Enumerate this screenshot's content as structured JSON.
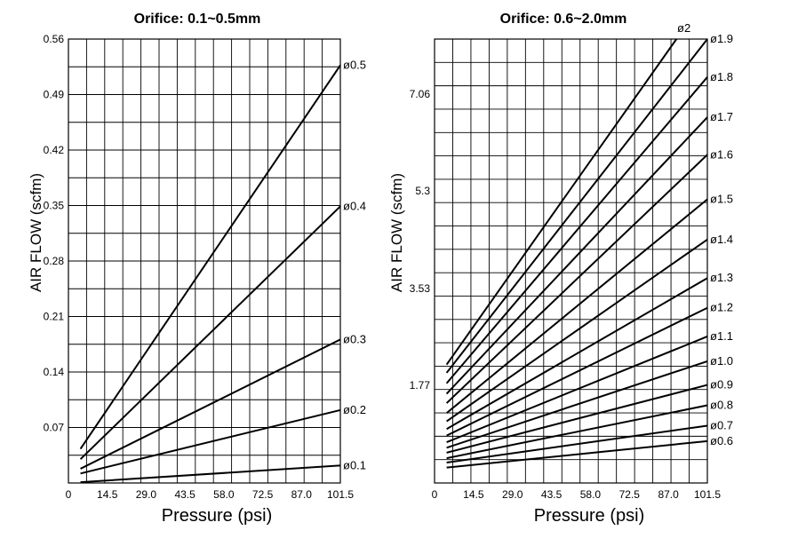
{
  "chart_data": [
    {
      "type": "line",
      "title": "Orifice: 0.1~0.5mm",
      "xlabel": "Pressure (psi)",
      "ylabel": "AIR FLOW (scfm)",
      "xlim": [
        0,
        101.5
      ],
      "ylim": [
        0,
        0.56
      ],
      "x_ticks": [
        "0",
        "14.5",
        "29.0",
        "43.5",
        "58.0",
        "72.5",
        "87.0",
        "101.5"
      ],
      "y_ticks": [
        "0.07",
        "0.14",
        "0.21",
        "0.28",
        "0.35",
        "0.42",
        "0.49",
        "0.56"
      ],
      "grid": true,
      "series": [
        {
          "name": "ø0.1",
          "x": [
            4.5,
            101.5
          ],
          "y": [
            0.001,
            0.022
          ]
        },
        {
          "name": "ø0.2",
          "x": [
            4.5,
            101.5
          ],
          "y": [
            0.012,
            0.092
          ]
        },
        {
          "name": "ø0.3",
          "x": [
            4.5,
            101.5
          ],
          "y": [
            0.018,
            0.181
          ]
        },
        {
          "name": "ø0.4",
          "x": [
            4.5,
            101.5
          ],
          "y": [
            0.03,
            0.349
          ]
        },
        {
          "name": "ø0.5",
          "x": [
            4.5,
            101.5
          ],
          "y": [
            0.043,
            0.527
          ]
        }
      ]
    },
    {
      "type": "line",
      "title": "Orifice: 0.6~2.0mm",
      "xlabel": "Pressure (psi)",
      "ylabel": "AIR FLOW (scfm)",
      "xlim": [
        0,
        101.5
      ],
      "ylim": [
        0,
        8.06
      ],
      "x_ticks": [
        "0",
        "14.5",
        "29.0",
        "43.5",
        "58.0",
        "72.5",
        "87.0",
        "101.5"
      ],
      "y_ticks": [
        "1.77",
        "3.53",
        "5.3",
        "7.06"
      ],
      "grid": true,
      "series": [
        {
          "name": "ø0.6",
          "x": [
            4.5,
            101.5
          ],
          "y": [
            0.28,
            0.76
          ]
        },
        {
          "name": "ø0.7",
          "x": [
            4.5,
            101.5
          ],
          "y": [
            0.37,
            1.04
          ]
        },
        {
          "name": "ø0.8",
          "x": [
            4.5,
            101.5
          ],
          "y": [
            0.45,
            1.41
          ]
        },
        {
          "name": "ø0.9",
          "x": [
            4.5,
            101.5
          ],
          "y": [
            0.55,
            1.78
          ]
        },
        {
          "name": "ø1.0",
          "x": [
            4.5,
            101.5
          ],
          "y": [
            0.64,
            2.21
          ]
        },
        {
          "name": "ø1.1",
          "x": [
            4.5,
            101.5
          ],
          "y": [
            0.74,
            2.66
          ]
        },
        {
          "name": "ø1.2",
          "x": [
            4.5,
            101.5
          ],
          "y": [
            0.86,
            3.18
          ]
        },
        {
          "name": "ø1.3",
          "x": [
            4.5,
            101.5
          ],
          "y": [
            0.98,
            3.72
          ]
        },
        {
          "name": "ø1.4",
          "x": [
            4.5,
            101.5
          ],
          "y": [
            1.12,
            4.42
          ]
        },
        {
          "name": "ø1.5",
          "x": [
            4.5,
            101.5
          ],
          "y": [
            1.27,
            5.15
          ]
        },
        {
          "name": "ø1.6",
          "x": [
            4.5,
            101.5
          ],
          "y": [
            1.45,
            5.96
          ]
        },
        {
          "name": "ø1.7",
          "x": [
            4.5,
            101.5
          ],
          "y": [
            1.62,
            6.64
          ]
        },
        {
          "name": "ø1.8",
          "x": [
            4.5,
            101.5
          ],
          "y": [
            1.81,
            7.37
          ]
        },
        {
          "name": "ø1.9",
          "x": [
            4.5,
            101.5
          ],
          "y": [
            2.0,
            8.06
          ]
        },
        {
          "name": "ø2",
          "x": [
            4.5,
            90.0
          ],
          "y": [
            2.15,
            8.06
          ]
        }
      ]
    }
  ]
}
